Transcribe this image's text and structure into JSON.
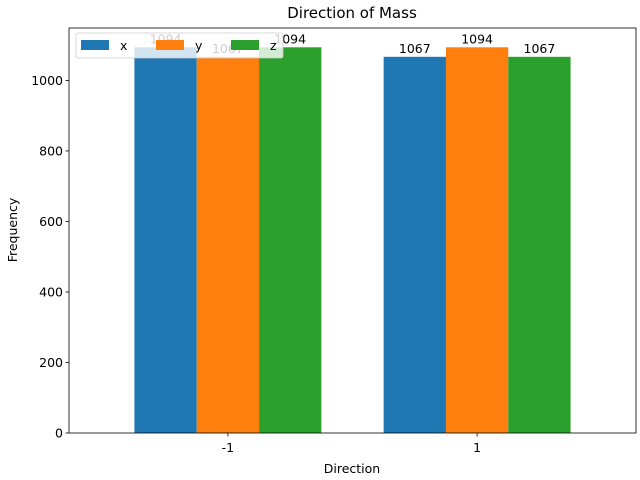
{
  "chart_data": {
    "type": "bar",
    "title": "Direction of Mass",
    "xlabel": "Direction",
    "ylabel": "Frequency",
    "categories": [
      "-1",
      "1"
    ],
    "series": [
      {
        "name": "x",
        "values": [
          1094,
          1067
        ],
        "color": "#1f77b4",
        "labels": [
          "1094",
          "1067"
        ]
      },
      {
        "name": "y",
        "values": [
          1067,
          1094
        ],
        "color": "#ff7f0e",
        "labels": [
          "1067",
          "1094"
        ]
      },
      {
        "name": "z",
        "values": [
          1094,
          1067
        ],
        "color": "#2ca02c",
        "labels": [
          "1094",
          "1067"
        ]
      }
    ],
    "ylim": [
      0,
      1148.7
    ],
    "yticks": [
      0,
      200,
      400,
      600,
      800,
      1000
    ],
    "yticks_labels": [
      "0",
      "200",
      "400",
      "600",
      "800",
      "1000"
    ],
    "grid": false,
    "legend": {
      "placement": "top-left",
      "columns": 3
    }
  }
}
